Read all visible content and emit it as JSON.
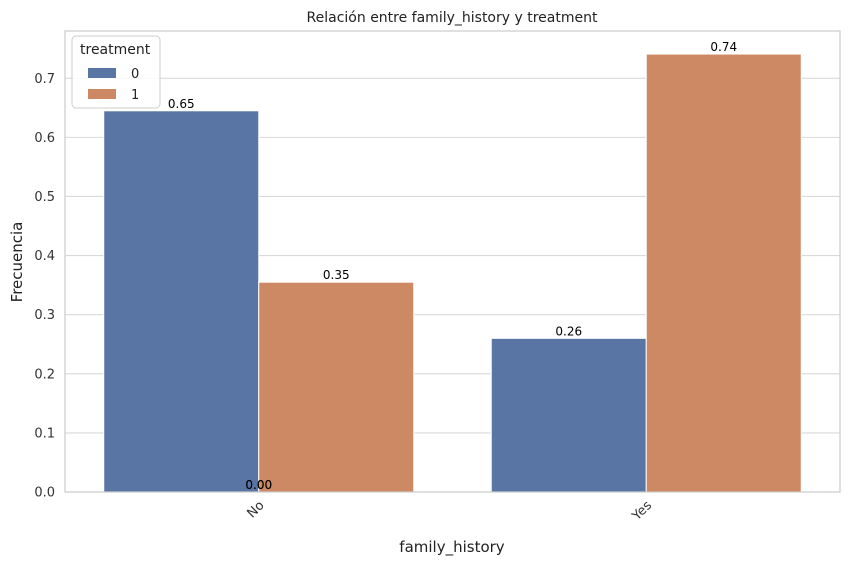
{
  "chart_data": {
    "type": "bar",
    "title": "Relación entre family_history y treatment",
    "xlabel": "family_history",
    "ylabel": "Frecuencia",
    "categories": [
      "No",
      "Yes"
    ],
    "series": [
      {
        "name": "0",
        "values": [
          0.645,
          0.26
        ],
        "color": "#5875a4"
      },
      {
        "name": "1",
        "values": [
          0.355,
          0.741
        ],
        "color": "#cc8963"
      }
    ],
    "data_labels": [
      [
        "0.65",
        "0.26"
      ],
      [
        "0.35",
        "0.74"
      ]
    ],
    "extra_labels": [
      "0.00",
      "0.00"
    ],
    "ylim": [
      0,
      0.78
    ],
    "yticks": [
      "0.0",
      "0.1",
      "0.2",
      "0.3",
      "0.4",
      "0.5",
      "0.6",
      "0.7"
    ],
    "grid": true,
    "legend": {
      "title": "treatment",
      "placement": "top-left"
    }
  }
}
